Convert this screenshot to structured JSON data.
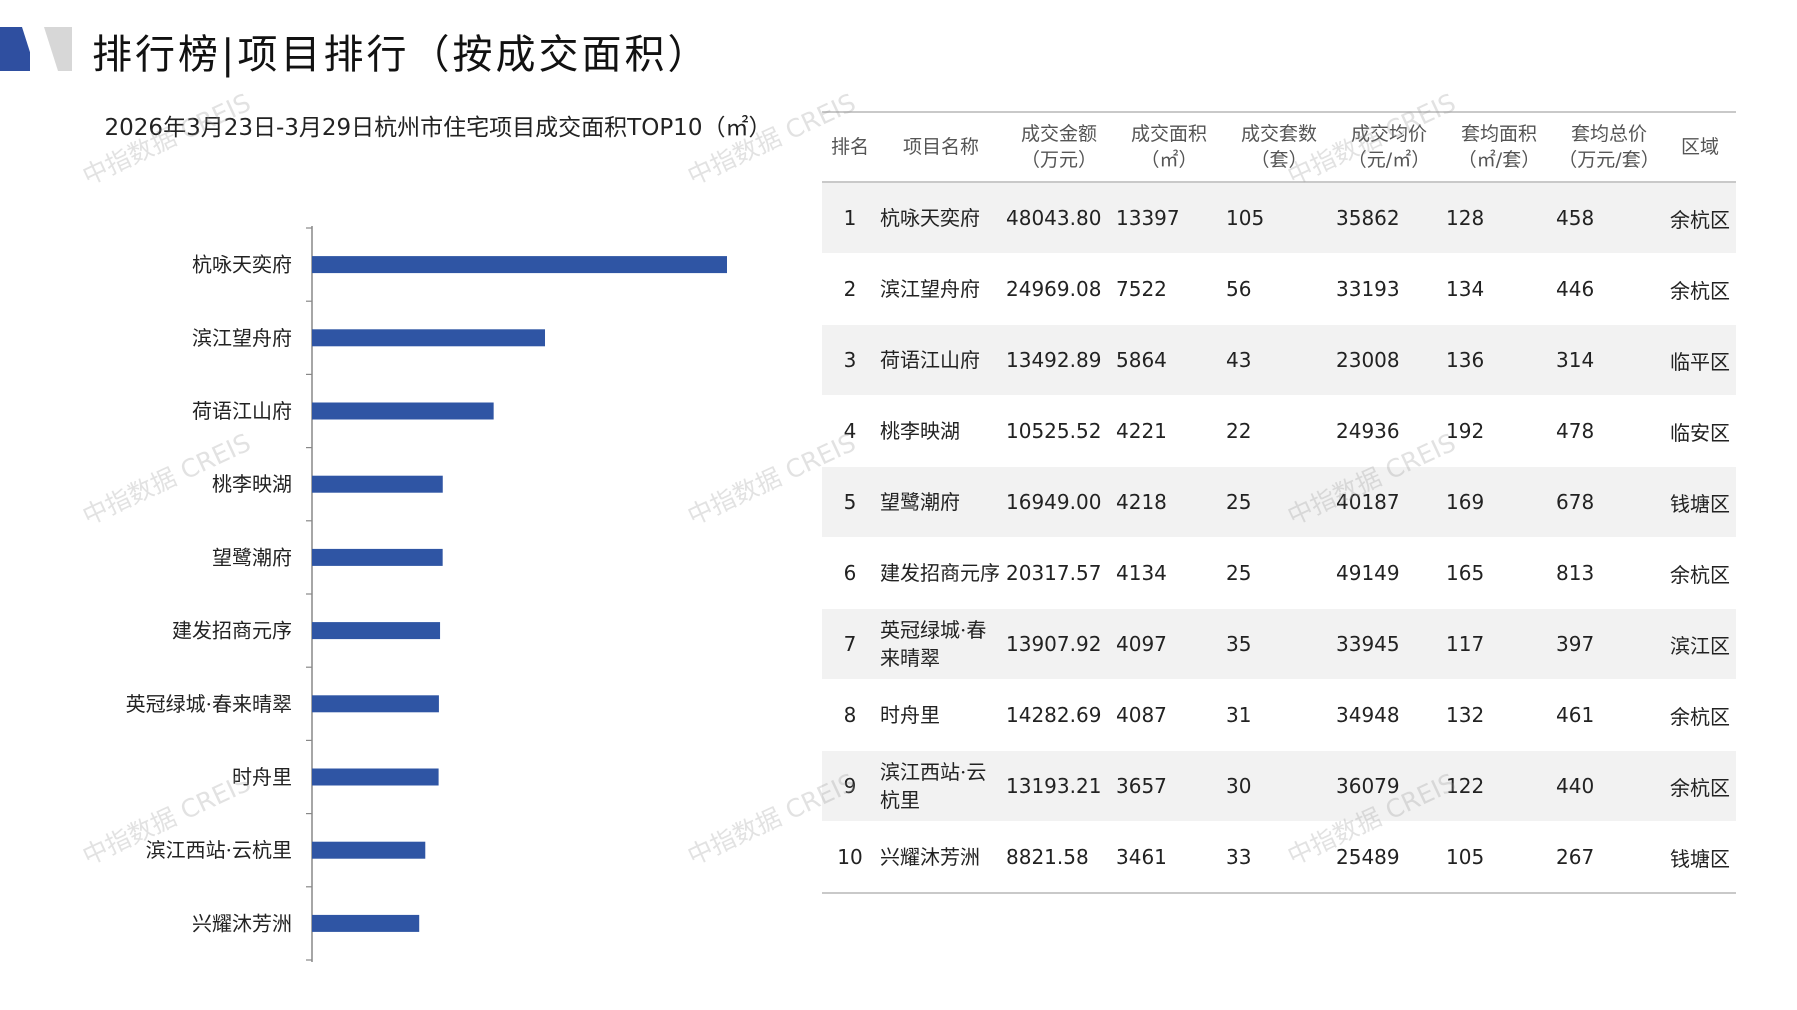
{
  "header": {
    "title": "排行榜|项目排行（按成交面积）"
  },
  "chart_data": {
    "type": "bar",
    "orientation": "horizontal",
    "title": "2026年3月23日-3月29日杭州市住宅项目成交面积TOP10（㎡）",
    "categories": [
      "杭咏天奕府",
      "滨江望舟府",
      "荷语江山府",
      "桃李映湖",
      "望鹭潮府",
      "建发招商元序",
      "英冠绿城·春来晴翠",
      "时舟里",
      "滨江西站·云杭里",
      "兴耀沐芳洲"
    ],
    "values": [
      13397,
      7522,
      5864,
      4221,
      4218,
      4134,
      4097,
      4087,
      3657,
      3461
    ],
    "bar_color": "#2f55a4",
    "xlabel": "",
    "ylabel": "",
    "xlim": [
      0,
      13397
    ],
    "grid": false,
    "legend": "none"
  },
  "table": {
    "headers": [
      {
        "line1": "排名",
        "line2": ""
      },
      {
        "line1": "项目名称",
        "line2": ""
      },
      {
        "line1": "成交金额",
        "line2": "（万元）"
      },
      {
        "line1": "成交面积",
        "line2": "（㎡）"
      },
      {
        "line1": "成交套数",
        "line2": "（套）"
      },
      {
        "line1": "成交均价",
        "line2": "（元/㎡）"
      },
      {
        "line1": "套均面积",
        "line2": "（㎡/套）"
      },
      {
        "line1": "套均总价",
        "line2": "（万元/套）"
      },
      {
        "line1": "区域",
        "line2": ""
      }
    ],
    "rows": [
      [
        "1",
        "杭咏天奕府",
        "48043.80",
        "13397",
        "105",
        "35862",
        "128",
        "458",
        "余杭区"
      ],
      [
        "2",
        "滨江望舟府",
        "24969.08",
        "7522",
        "56",
        "33193",
        "134",
        "446",
        "余杭区"
      ],
      [
        "3",
        "荷语江山府",
        "13492.89",
        "5864",
        "43",
        "23008",
        "136",
        "314",
        "临平区"
      ],
      [
        "4",
        "桃李映湖",
        "10525.52",
        "4221",
        "22",
        "24936",
        "192",
        "478",
        "临安区"
      ],
      [
        "5",
        "望鹭潮府",
        "16949.00",
        "4218",
        "25",
        "40187",
        "169",
        "678",
        "钱塘区"
      ],
      [
        "6",
        "建发招商元序",
        "20317.57",
        "4134",
        "25",
        "49149",
        "165",
        "813",
        "余杭区"
      ],
      [
        "7",
        "英冠绿城·春来晴翠",
        "13907.92",
        "4097",
        "35",
        "33945",
        "117",
        "397",
        "滨江区"
      ],
      [
        "8",
        "时舟里",
        "14282.69",
        "4087",
        "31",
        "34948",
        "132",
        "461",
        "余杭区"
      ],
      [
        "9",
        "滨江西站·云杭里",
        "13193.21",
        "3657",
        "30",
        "36079",
        "122",
        "440",
        "余杭区"
      ],
      [
        "10",
        "兴耀沐芳洲",
        "8821.58",
        "3461",
        "33",
        "25489",
        "105",
        "267",
        "钱塘区"
      ]
    ]
  },
  "watermark": "中指数据 CREIS"
}
